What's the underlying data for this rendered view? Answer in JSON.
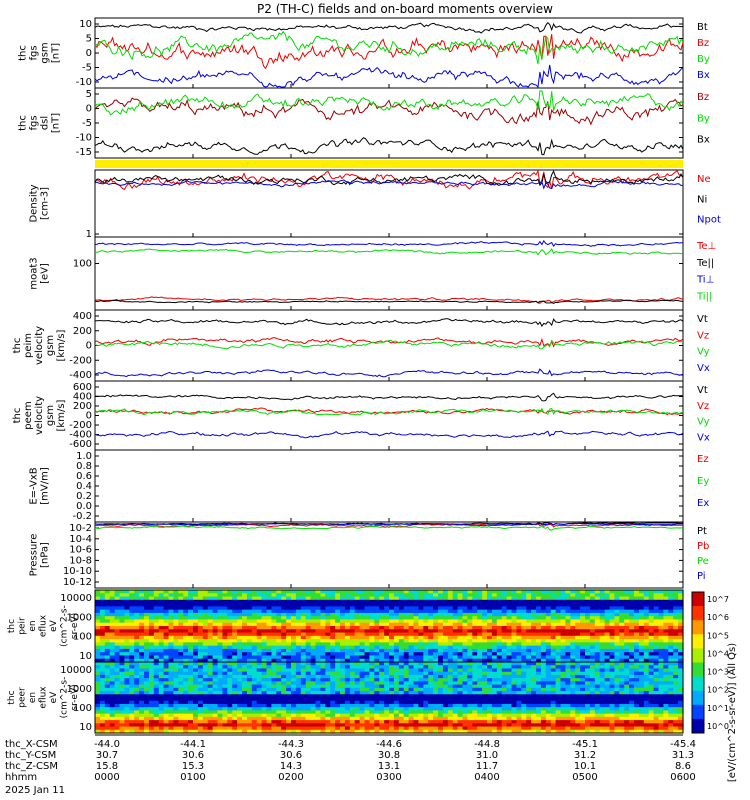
{
  "title": "P2 (TH-C) fields and on-board moments overview",
  "colors": {
    "black": "#000000",
    "red": "#ee0000",
    "green": "#00dd00",
    "blue": "#0000dd",
    "darkred": "#990000",
    "yellow": "#ffee00"
  },
  "chart_data": {
    "type": "line",
    "date": "2025 Jan 11",
    "x_ticks": [
      "0000",
      "0100",
      "0200",
      "0300",
      "0400",
      "0500",
      "0600"
    ],
    "orbit_rows": [
      {
        "label": "thc_X-CSM",
        "values": [
          "-44.0",
          "-44.1",
          "-44.3",
          "-44.6",
          "-44.8",
          "-45.1",
          "-45.4"
        ]
      },
      {
        "label": "thc_Y-CSM",
        "values": [
          "30.7",
          "30.6",
          "30.6",
          "30.8",
          "31.0",
          "31.2",
          "31.3"
        ]
      },
      {
        "label": "thc_Z-CSM",
        "values": [
          "15.8",
          "15.3",
          "14.3",
          "13.1",
          "11.7",
          "10.1",
          "8.6"
        ]
      },
      {
        "label": "hhmm",
        "values": [
          "0000",
          "0100",
          "0200",
          "0300",
          "0400",
          "0500",
          "0600"
        ]
      }
    ],
    "panels": [
      {
        "ylabel": [
          "thc",
          "fgs",
          "gsm",
          "[nT]"
        ],
        "yticks": [
          "10",
          "5",
          "0",
          "-5",
          "-10"
        ],
        "ylim": [
          -10,
          12
        ],
        "series": [
          {
            "name": "Bt",
            "color": "black",
            "base": 9,
            "amp": 1.5
          },
          {
            "name": "Bz",
            "color": "red",
            "base": 2,
            "amp": 5
          },
          {
            "name": "By",
            "color": "green",
            "base": 3,
            "amp": 4
          },
          {
            "name": "Bx",
            "color": "blue",
            "base": -7,
            "amp": 3
          }
        ]
      },
      {
        "ylabel": [
          "thc",
          "fgs",
          "dsl",
          "[nT]"
        ],
        "yticks": [
          "5",
          "0",
          "-5",
          "-10",
          "-15"
        ],
        "ylim": [
          -18,
          8
        ],
        "series": [
          {
            "name": "Bz",
            "color": "darkred",
            "base": -1,
            "amp": 5
          },
          {
            "name": "By",
            "color": "green",
            "base": 2,
            "amp": 4
          },
          {
            "name": "Bx",
            "color": "black",
            "base": -13,
            "amp": 3
          }
        ]
      },
      {
        "ylabel": [
          "Density",
          "[cm-3]"
        ],
        "yticks": [
          "1"
        ],
        "ylim": [
          0,
          10
        ],
        "series": [
          {
            "name": "Ne",
            "color": "red",
            "base": 8.5,
            "amp": 1.5
          },
          {
            "name": "Ni",
            "color": "black",
            "base": 8.6,
            "amp": 1
          },
          {
            "name": "Npot",
            "color": "blue",
            "base": 8,
            "amp": 0.5
          }
        ]
      },
      {
        "ylabel": [
          "moat3",
          "[eV]"
        ],
        "yticks": [
          "100"
        ],
        "ylim": [
          0,
          10
        ],
        "series": [
          {
            "name": "Te⊥",
            "color": "red",
            "base": 1.5,
            "amp": 0.3
          },
          {
            "name": "Te||",
            "color": "black",
            "base": 1.2,
            "amp": 0.2
          },
          {
            "name": "Ti⊥",
            "color": "blue",
            "base": 9,
            "amp": 0.3
          },
          {
            "name": "Ti||",
            "color": "green",
            "base": 8,
            "amp": 0.3
          }
        ]
      },
      {
        "ylabel": [
          "thc",
          "peim",
          "velocity",
          "gsm",
          "[km/s]"
        ],
        "yticks": [
          "400",
          "200",
          "0",
          "-200",
          "-400"
        ],
        "ylim": [
          -450,
          450
        ],
        "series": [
          {
            "name": "Vt",
            "color": "black",
            "base": 300,
            "amp": 40
          },
          {
            "name": "Vz",
            "color": "red",
            "base": 60,
            "amp": 50
          },
          {
            "name": "Vy",
            "color": "green",
            "base": 20,
            "amp": 50
          },
          {
            "name": "Vx",
            "color": "blue",
            "base": -350,
            "amp": 40
          }
        ]
      },
      {
        "ylabel": [
          "thc",
          "peem",
          "velocity",
          "gsm",
          "[km/s]"
        ],
        "yticks": [
          "600",
          "400",
          "200",
          "0",
          "-200",
          "-400",
          "-600"
        ],
        "ylim": [
          -650,
          650
        ],
        "series": [
          {
            "name": "Vt",
            "color": "black",
            "base": 350,
            "amp": 50
          },
          {
            "name": "Vz",
            "color": "red",
            "base": 80,
            "amp": 60
          },
          {
            "name": "Vy",
            "color": "green",
            "base": 60,
            "amp": 60
          },
          {
            "name": "Vx",
            "color": "blue",
            "base": -350,
            "amp": 60
          }
        ]
      },
      {
        "ylabel": [
          "E=-VxB",
          "[mV/m]"
        ],
        "yticks": [
          "1.0",
          "0.8",
          "0.6",
          "0.4",
          "0.2",
          "0.0",
          "-0.2"
        ],
        "ylim": [
          -0.2,
          1.0
        ],
        "series": [
          {
            "name": "Ez",
            "color": "red",
            "base": 0,
            "amp": 0
          },
          {
            "name": "Ey",
            "color": "green",
            "base": 0,
            "amp": 0
          },
          {
            "name": "Ex",
            "color": "blue",
            "base": 0,
            "amp": 0
          }
        ]
      },
      {
        "ylabel": [
          "Pressure",
          "[nPa]"
        ],
        "yticks": [
          "10-2",
          "10-4",
          "10-6",
          "10-8",
          "10-10",
          "10-12"
        ],
        "ylim": [
          -13,
          -1
        ],
        "series": [
          {
            "name": "Pt",
            "color": "black",
            "base": -1.3,
            "amp": 0.2
          },
          {
            "name": "Pb",
            "color": "red",
            "base": -1.6,
            "amp": 0.3
          },
          {
            "name": "Pe",
            "color": "green",
            "base": -2,
            "amp": 0.3
          },
          {
            "name": "Pi",
            "color": "blue",
            "base": -1.4,
            "amp": 0.2
          }
        ]
      }
    ],
    "spectrograms": [
      {
        "ylabel": [
          "thc",
          "peir",
          "en",
          "eflux",
          "eV",
          "(cm^2-s-",
          "sr-eV)"
        ],
        "yticks": [
          "10000",
          "1000",
          "100",
          "10"
        ],
        "band_top": 0.4,
        "band_bottom": 0.7
      },
      {
        "ylabel": [
          "thc",
          "peer",
          "en",
          "eflux",
          "eV",
          "(cm^2-s-",
          "sr-eV)"
        ],
        "yticks": [
          "10000",
          "1000",
          "100",
          "10"
        ],
        "band_top": 0.72,
        "band_bottom": 1.0
      }
    ],
    "colorbar": {
      "labels": [
        "10^7",
        "10^6",
        "10^5",
        "10^4",
        "10^3",
        "10^2",
        "10^1",
        "10^0"
      ],
      "title": "[eV/(cm^2-s-sr-eV)] (All Qs)"
    }
  }
}
